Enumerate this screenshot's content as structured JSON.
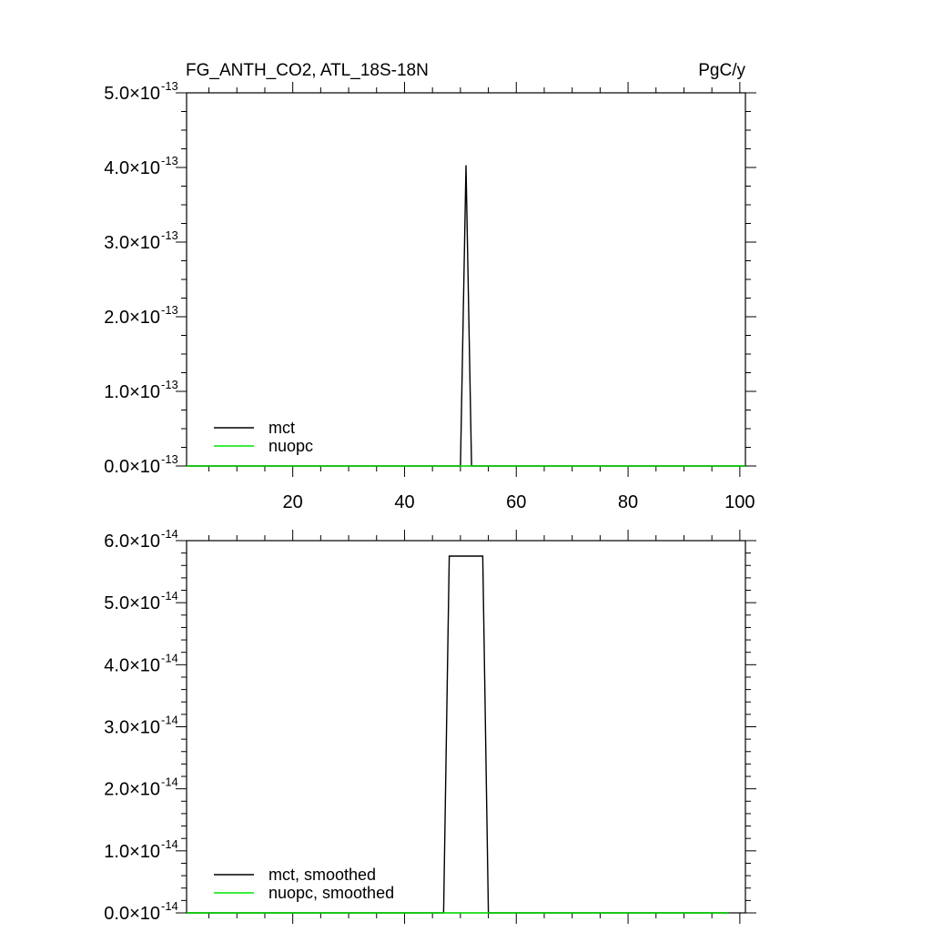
{
  "header": {
    "left_title": "FG_ANTH_CO2, ATL_18S-18N",
    "right_title": "PgC/y"
  },
  "colors": {
    "mct": "#000000",
    "nuopc": "#00e600",
    "axis": "#000000",
    "background": "#ffffff"
  },
  "chart_data": [
    {
      "type": "line",
      "title": "FG_ANTH_CO2, ATL_18S-18N",
      "units": "PgC/y",
      "xlim": [
        1,
        101
      ],
      "ylim": [
        0,
        5e-13
      ],
      "x_ticks": [
        20,
        40,
        60,
        80,
        100
      ],
      "x_tick_labels": [
        "20",
        "40",
        "60",
        "80",
        "100"
      ],
      "y_ticks": [
        0,
        1e-13,
        2e-13,
        3e-13,
        4e-13,
        5e-13
      ],
      "y_tick_labels": [
        {
          "mantissa": "0.0×10",
          "exponent": "-13"
        },
        {
          "mantissa": "1.0×10",
          "exponent": "-13"
        },
        {
          "mantissa": "2.0×10",
          "exponent": "-13"
        },
        {
          "mantissa": "3.0×10",
          "exponent": "-13"
        },
        {
          "mantissa": "4.0×10",
          "exponent": "-13"
        },
        {
          "mantissa": "5.0×10",
          "exponent": "-13"
        }
      ],
      "legend_position": "bottom-left",
      "series": [
        {
          "name": "mct",
          "color_key": "mct",
          "x": [
            1,
            50,
            51,
            52,
            101
          ],
          "values": [
            0,
            0,
            4.03e-13,
            0,
            0
          ]
        },
        {
          "name": "nuopc",
          "color_key": "nuopc",
          "x": [
            1,
            101
          ],
          "values": [
            0,
            0
          ]
        }
      ]
    },
    {
      "type": "line",
      "xlim": [
        1,
        101
      ],
      "ylim": [
        0,
        6e-14
      ],
      "x_ticks": [
        20,
        40,
        60,
        80,
        100
      ],
      "x_tick_labels": [],
      "y_ticks": [
        0,
        1e-14,
        2e-14,
        3e-14,
        4e-14,
        5e-14,
        6e-14
      ],
      "y_tick_labels": [
        {
          "mantissa": "0.0×10",
          "exponent": "-14"
        },
        {
          "mantissa": "1.0×10",
          "exponent": "-14"
        },
        {
          "mantissa": "2.0×10",
          "exponent": "-14"
        },
        {
          "mantissa": "3.0×10",
          "exponent": "-14"
        },
        {
          "mantissa": "4.0×10",
          "exponent": "-14"
        },
        {
          "mantissa": "5.0×10",
          "exponent": "-14"
        },
        {
          "mantissa": "6.0×10",
          "exponent": "-14"
        }
      ],
      "legend_position": "bottom-left",
      "series": [
        {
          "name": "mct, smoothed",
          "color_key": "mct",
          "x": [
            1,
            47,
            48,
            54,
            55,
            98
          ],
          "values": [
            0,
            0,
            5.75e-14,
            5.75e-14,
            0,
            0
          ]
        },
        {
          "name": "nuopc, smoothed",
          "color_key": "nuopc",
          "x": [
            1,
            98
          ],
          "values": [
            0,
            0
          ]
        }
      ]
    }
  ]
}
